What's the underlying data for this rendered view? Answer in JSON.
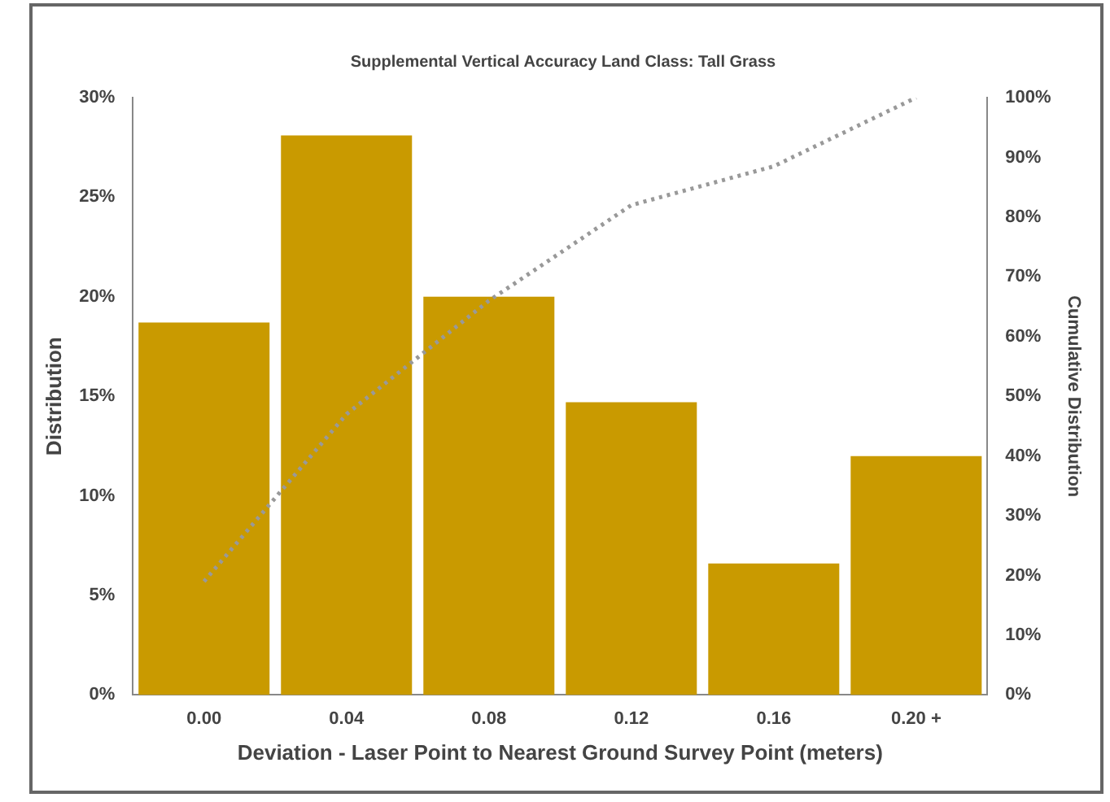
{
  "chart_data": {
    "type": "bar",
    "title": "Supplemental Vertical Accuracy Land Class: Tall Grass",
    "xlabel": "Deviation - Laser Point to Nearest Ground Survey Point (meters)",
    "ylabel": "Distribution",
    "y2label": "Cumulative Distribution",
    "categories": [
      "0.00",
      "0.04",
      "0.08",
      "0.12",
      "0.16",
      "0.20 +"
    ],
    "series": [
      {
        "color": "#c99a00",
        "values": [
          18.7,
          28.1,
          20.0,
          14.7,
          6.6,
          12.0
        ]
      },
      {
        "type": "line",
        "axis": "y2",
        "color": "#999999",
        "line_style": "dotted",
        "marker": "none",
        "values": [
          19,
          47,
          66,
          82,
          88.5,
          100
        ]
      }
    ],
    "ylim": [
      0,
      30
    ],
    "yticks": [
      {
        "value": 0,
        "label": "0%"
      },
      {
        "value": 5,
        "label": "5%"
      },
      {
        "value": 10,
        "label": "10%"
      },
      {
        "value": 15,
        "label": "15%"
      },
      {
        "value": 20,
        "label": "20%"
      },
      {
        "value": 25,
        "label": "25%"
      },
      {
        "value": 30,
        "label": "30%"
      }
    ],
    "y2lim": [
      0,
      100
    ],
    "y2ticks": [
      {
        "value": 0,
        "label": "0%"
      },
      {
        "value": 10,
        "label": "10%"
      },
      {
        "value": 20,
        "label": "20%"
      },
      {
        "value": 30,
        "label": "30%"
      },
      {
        "value": 40,
        "label": "40%"
      },
      {
        "value": 50,
        "label": "50%"
      },
      {
        "value": 60,
        "label": "60%"
      },
      {
        "value": 70,
        "label": "70%"
      },
      {
        "value": 80,
        "label": "80%"
      },
      {
        "value": 90,
        "label": "90%"
      },
      {
        "value": 100,
        "label": "100%"
      }
    ],
    "grid": false,
    "legend": false
  }
}
